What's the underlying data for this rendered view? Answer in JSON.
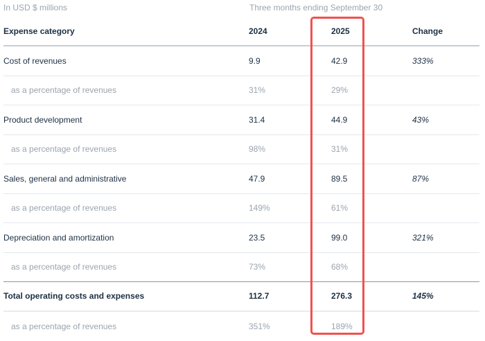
{
  "caption": {
    "units": "In USD $ millions",
    "period": "Three months ending September 30"
  },
  "header": {
    "category": "Expense category",
    "col_2024": "2024",
    "col_2025": "2025",
    "change": "Change"
  },
  "rows": [
    {
      "label": "Cost of revenues",
      "v2024": "9.9",
      "v2025": "42.9",
      "change": "333%"
    },
    {
      "label": "as a percentage of revenues",
      "v2024": "31%",
      "v2025": "29%",
      "change": ""
    },
    {
      "label": "Product development",
      "v2024": "31.4",
      "v2025": "44.9",
      "change": "43%"
    },
    {
      "label": "as a percentage of revenues",
      "v2024": "98%",
      "v2025": "31%",
      "change": ""
    },
    {
      "label": "Sales, general and administrative",
      "v2024": "47.9",
      "v2025": "89.5",
      "change": "87%"
    },
    {
      "label": "as a percentage of revenues",
      "v2024": "149%",
      "v2025": "61%",
      "change": ""
    },
    {
      "label": "Depreciation and amortization",
      "v2024": "23.5",
      "v2025": "99.0",
      "change": "321%"
    },
    {
      "label": "as a percentage of revenues",
      "v2024": "73%",
      "v2025": "68%",
      "change": ""
    },
    {
      "label": "Total operating costs and expenses",
      "v2024": "112.7",
      "v2025": "276.3",
      "change": "145%"
    },
    {
      "label": "as a percentage of revenues",
      "v2024": "351%",
      "v2025": "189%",
      "change": ""
    }
  ],
  "highlight": {
    "column": "2025",
    "color": "#f0514f"
  },
  "colors": {
    "text": "#1c2f43",
    "muted": "#9aa4ae",
    "divider": "#e3e8ec",
    "header_divider": "#c5ced5",
    "total_divider": "#8795a2"
  }
}
